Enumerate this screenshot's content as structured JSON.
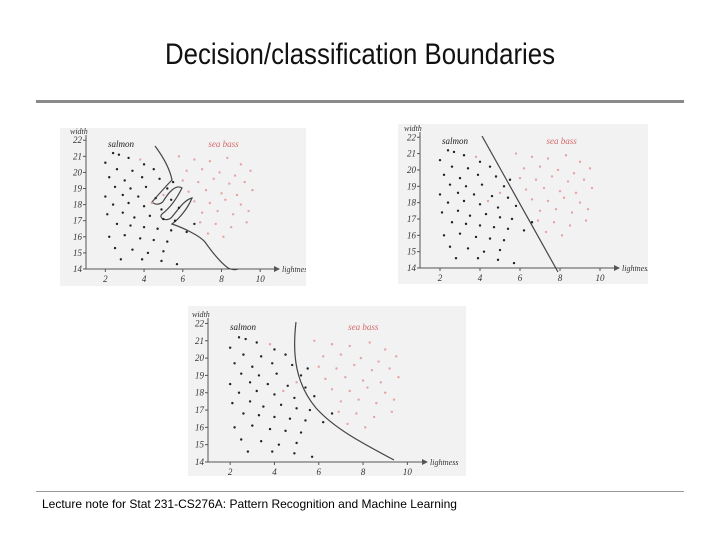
{
  "slide": {
    "title": "Decision/classification Boundaries",
    "footer": "Lecture note for Stat 231-CS276A: Pattern Recognition and Machine Learning"
  },
  "chart_data": [
    {
      "type": "scatter",
      "title": "",
      "xlabel": "lightness",
      "ylabel": "width",
      "xlim": [
        1,
        10.3
      ],
      "ylim": [
        14,
        22.2
      ],
      "xticks": [
        2,
        4,
        6,
        8,
        10
      ],
      "yticks": [
        14,
        15,
        16,
        17,
        18,
        19,
        20,
        21,
        22
      ],
      "series": [
        {
          "name": "salmon",
          "color": "#222222",
          "points": [
            [
              2.4,
              21.2
            ],
            [
              2.7,
              21.1
            ],
            [
              2.0,
              20.6
            ],
            [
              3.2,
              20.9
            ],
            [
              4.0,
              20.5
            ],
            [
              2.6,
              20.2
            ],
            [
              3.4,
              20.1
            ],
            [
              4.5,
              20.2
            ],
            [
              2.2,
              19.7
            ],
            [
              3.0,
              19.5
            ],
            [
              3.9,
              19.7
            ],
            [
              4.8,
              19.6
            ],
            [
              5.5,
              19.4
            ],
            [
              2.5,
              19.1
            ],
            [
              3.3,
              19.0
            ],
            [
              4.1,
              19.1
            ],
            [
              5.2,
              19.0
            ],
            [
              2.0,
              18.5
            ],
            [
              2.9,
              18.6
            ],
            [
              3.7,
              18.5
            ],
            [
              4.6,
              18.4
            ],
            [
              5.4,
              18.3
            ],
            [
              2.4,
              18.0
            ],
            [
              3.2,
              18.1
            ],
            [
              4.0,
              17.9
            ],
            [
              4.9,
              17.7
            ],
            [
              5.8,
              17.8
            ],
            [
              2.1,
              17.4
            ],
            [
              2.9,
              17.5
            ],
            [
              3.5,
              17.2
            ],
            [
              4.3,
              17.3
            ],
            [
              5.0,
              17.1
            ],
            [
              5.6,
              17.0
            ],
            [
              2.6,
              16.8
            ],
            [
              3.3,
              16.7
            ],
            [
              4.0,
              16.6
            ],
            [
              4.7,
              16.5
            ],
            [
              5.4,
              16.4
            ],
            [
              6.2,
              16.3
            ],
            [
              2.2,
              16.0
            ],
            [
              3.0,
              16.1
            ],
            [
              3.8,
              15.9
            ],
            [
              4.5,
              15.8
            ],
            [
              5.2,
              15.7
            ],
            [
              6.6,
              16.8
            ],
            [
              2.5,
              15.3
            ],
            [
              3.4,
              15.2
            ],
            [
              4.2,
              15.0
            ],
            [
              5.0,
              15.1
            ],
            [
              2.8,
              14.6
            ],
            [
              3.9,
              14.6
            ],
            [
              4.9,
              14.5
            ],
            [
              5.7,
              14.3
            ]
          ]
        },
        {
          "name": "sea bass",
          "color": "#e8a3a3",
          "points": [
            [
              5.8,
              21.0
            ],
            [
              6.6,
              20.8
            ],
            [
              7.4,
              20.7
            ],
            [
              8.3,
              20.9
            ],
            [
              9.0,
              20.5
            ],
            [
              6.2,
              20.1
            ],
            [
              7.0,
              20.2
            ],
            [
              7.9,
              20.0
            ],
            [
              8.7,
              19.8
            ],
            [
              9.5,
              20.1
            ],
            [
              6.0,
              19.5
            ],
            [
              6.8,
              19.4
            ],
            [
              7.6,
              19.6
            ],
            [
              8.4,
              19.3
            ],
            [
              9.2,
              19.4
            ],
            [
              6.3,
              18.8
            ],
            [
              7.2,
              18.9
            ],
            [
              8.0,
              18.7
            ],
            [
              8.8,
              18.6
            ],
            [
              9.6,
              18.9
            ],
            [
              6.6,
              18.2
            ],
            [
              7.4,
              18.1
            ],
            [
              8.2,
              18.3
            ],
            [
              9.0,
              18.0
            ],
            [
              7.0,
              17.5
            ],
            [
              7.8,
              17.6
            ],
            [
              8.6,
              17.4
            ],
            [
              9.4,
              17.6
            ],
            [
              4.4,
              18.1
            ],
            [
              6.9,
              16.9
            ],
            [
              7.7,
              16.8
            ],
            [
              8.5,
              16.6
            ],
            [
              5.0,
              18.6
            ],
            [
              7.3,
              16.2
            ],
            [
              8.1,
              16.0
            ],
            [
              9.3,
              16.9
            ],
            [
              3.8,
              20.8
            ]
          ]
        }
      ]
    }
  ]
}
